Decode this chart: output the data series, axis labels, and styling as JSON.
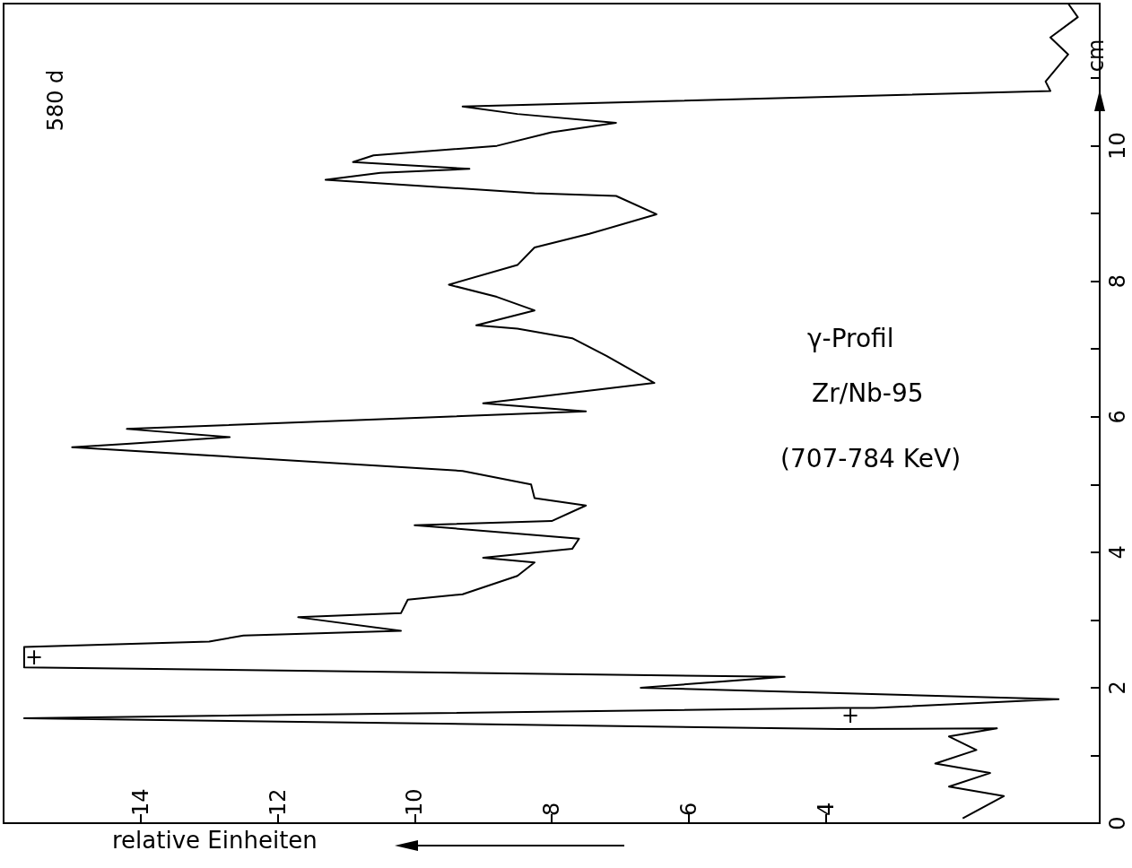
{
  "chart_data": {
    "type": "line",
    "orientation": "horizontal",
    "color": "#000000",
    "xlabel": "relative Einheiten",
    "ylabel": "cm",
    "x": [
      0.07,
      0.4,
      0.54,
      0.74,
      0.88,
      1.08,
      1.28,
      1.4,
      1.39,
      1.55,
      1.7,
      1.7,
      1.83,
      2.0,
      2.16,
      2.3,
      2.6,
      2.68,
      2.77,
      2.84,
      3.04,
      3.1,
      3.3,
      3.38,
      3.65,
      3.85,
      3.92,
      4.05,
      4.2,
      4.4,
      4.46,
      4.69,
      4.8,
      5.0,
      5.2,
      5.27,
      5.55,
      5.6,
      5.7,
      5.82,
      6.08,
      6.2,
      6.5,
      6.9,
      7.16,
      7.3,
      7.35,
      7.57,
      7.77,
      7.95,
      8.24,
      8.5,
      8.7,
      8.99,
      9.26,
      9.3,
      9.5,
      9.6,
      9.66,
      9.76,
      9.86,
      10.0,
      10.2,
      10.34,
      10.47,
      10.58,
      10.81,
      10.95,
      11.35,
      11.6,
      11.9,
      12.1
    ],
    "values": [
      2.0,
      1.4,
      2.2,
      1.6,
      2.4,
      1.8,
      2.2,
      1.5,
      3.8,
      15.7,
      3.8,
      3.3,
      0.6,
      6.7,
      4.6,
      15.7,
      15.7,
      13.0,
      12.5,
      10.2,
      11.7,
      10.2,
      10.1,
      9.3,
      8.5,
      8.25,
      9.0,
      7.7,
      7.6,
      10.0,
      8.0,
      7.5,
      8.25,
      8.3,
      9.3,
      10.4,
      15.0,
      14.2,
      12.7,
      14.2,
      7.5,
      9.0,
      6.5,
      7.2,
      7.7,
      8.5,
      9.1,
      8.25,
      8.8,
      9.5,
      8.5,
      8.25,
      7.45,
      6.47,
      7.06,
      8.25,
      11.3,
      10.5,
      9.2,
      10.9,
      10.6,
      8.8,
      8.0,
      7.06,
      8.5,
      9.3,
      0.72,
      0.79,
      0.46,
      0.72,
      0.32,
      0.46
    ],
    "xlim": [
      16,
      0
    ],
    "xticks": [
      14,
      12,
      10,
      8,
      6,
      4
    ],
    "ylim": [
      0,
      12.1
    ],
    "yticks": [
      0,
      {
        "value": 1,
        "label": null
      },
      2,
      {
        "value": 3,
        "label": null
      },
      4,
      {
        "value": 5,
        "label": null
      },
      6,
      {
        "value": 7,
        "label": null
      },
      8,
      {
        "value": 9,
        "label": null
      },
      10,
      {
        "value": 11,
        "label": null
      }
    ],
    "annotations": [
      "580 d",
      "γ-Profil",
      "Zr/Nb-95",
      "(707-784 KeV)",
      "+",
      "+"
    ]
  }
}
